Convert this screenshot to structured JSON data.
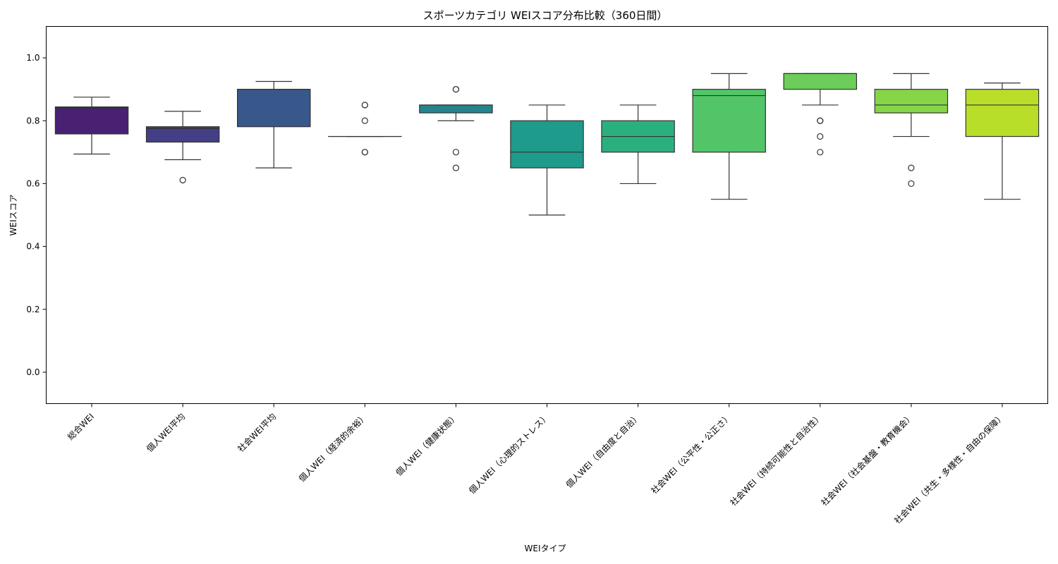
{
  "chart_data": {
    "type": "box",
    "title": "スポーツカテゴリ WEIスコア分布比較（360日間）",
    "xlabel": "WEIタイプ",
    "ylabel": "WEIスコア",
    "ylim": [
      -0.1,
      1.1
    ],
    "yticks": [
      "0.0",
      "0.2",
      "0.4",
      "0.6",
      "0.8",
      "1.0"
    ],
    "grid": false,
    "legend": "none",
    "categories": [
      "総合WEI",
      "個人WEI平均",
      "社会WEI平均",
      "個人WEI（経済的余裕）",
      "個人WEI（健康状態）",
      "個人WEI（心理的ストレス）",
      "個人WEI（自由度と自治）",
      "社会WEI（公平性・公正さ）",
      "社会WEI（持続可能性と自治性）",
      "社会WEI（社会基盤・教育機会）",
      "社会WEI（共生・多様性・自由の保障）"
    ],
    "boxes": [
      {
        "color": "#482173",
        "whislo": 0.694,
        "q1": 0.758,
        "med": 0.838,
        "q3": 0.844,
        "whishi": 0.875,
        "fliers": []
      },
      {
        "color": "#433e85",
        "whislo": 0.676,
        "q1": 0.732,
        "med": 0.775,
        "q3": 0.781,
        "whishi": 0.83,
        "fliers": [
          0.611
        ]
      },
      {
        "color": "#38588c",
        "whislo": 0.65,
        "q1": 0.781,
        "med": 0.9,
        "q3": 0.9,
        "whishi": 0.925,
        "fliers": []
      },
      {
        "color": "#2d708e",
        "whislo": 0.75,
        "q1": 0.75,
        "med": 0.75,
        "q3": 0.75,
        "whishi": 0.75,
        "fliers": [
          0.7,
          0.7,
          0.8,
          0.85,
          0.85
        ]
      },
      {
        "color": "#25858e",
        "whislo": 0.8,
        "q1": 0.825,
        "med": 0.85,
        "q3": 0.85,
        "whishi": 0.85,
        "fliers": [
          0.65,
          0.7,
          0.9,
          0.9
        ]
      },
      {
        "color": "#1e9b8a",
        "whislo": 0.5,
        "q1": 0.65,
        "med": 0.7,
        "q3": 0.8,
        "whishi": 0.85,
        "fliers": []
      },
      {
        "color": "#2ab07f",
        "whislo": 0.6,
        "q1": 0.7,
        "med": 0.75,
        "q3": 0.8,
        "whishi": 0.85,
        "fliers": []
      },
      {
        "color": "#52c569",
        "whislo": 0.55,
        "q1": 0.7,
        "med": 0.88,
        "q3": 0.9,
        "whishi": 0.95,
        "fliers": []
      },
      {
        "color": "#6ccd5a",
        "whislo": 0.85,
        "q1": 0.9,
        "med": 0.95,
        "q3": 0.95,
        "whishi": 0.95,
        "fliers": [
          0.7,
          0.75,
          0.8,
          0.8
        ]
      },
      {
        "color": "#86d549",
        "whislo": 0.75,
        "q1": 0.825,
        "med": 0.85,
        "q3": 0.9,
        "whishi": 0.95,
        "fliers": [
          0.6,
          0.65
        ]
      },
      {
        "color": "#b8de29",
        "whislo": 0.55,
        "q1": 0.75,
        "med": 0.85,
        "q3": 0.9,
        "whishi": 0.92,
        "fliers": []
      }
    ]
  }
}
